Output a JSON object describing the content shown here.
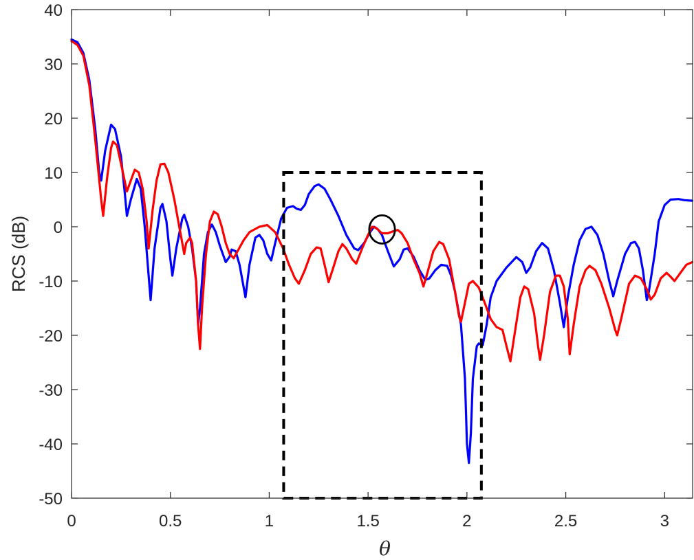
{
  "chart_data": {
    "type": "line",
    "title": "",
    "xlabel": "θ",
    "ylabel": "RCS (dB)",
    "xlim": [
      0,
      3.1416
    ],
    "ylim": [
      -50,
      40
    ],
    "xticks": [
      0,
      0.5,
      1,
      1.5,
      2,
      2.5,
      3
    ],
    "xtick_labels": [
      "0",
      "0.5",
      "1",
      "1.5",
      "2",
      "2.5",
      "3"
    ],
    "yticks": [
      -50,
      -40,
      -30,
      -20,
      -10,
      0,
      10,
      20,
      30,
      40
    ],
    "ytick_labels": [
      "-50",
      "-40",
      "-30",
      "-20",
      "-10",
      "0",
      "10",
      "20",
      "30",
      "40"
    ],
    "grid": false,
    "series": [
      {
        "color": "#0000ff",
        "points": [
          [
            0,
            34.5
          ],
          [
            0.03,
            34
          ],
          [
            0.06,
            32
          ],
          [
            0.09,
            27
          ],
          [
            0.12,
            18
          ],
          [
            0.14,
            10
          ],
          [
            0.15,
            8.5
          ],
          [
            0.17,
            14
          ],
          [
            0.2,
            18.8
          ],
          [
            0.22,
            18
          ],
          [
            0.25,
            13
          ],
          [
            0.27,
            6
          ],
          [
            0.28,
            2
          ],
          [
            0.3,
            5
          ],
          [
            0.33,
            8.8
          ],
          [
            0.35,
            7
          ],
          [
            0.37,
            0
          ],
          [
            0.39,
            -9
          ],
          [
            0.4,
            -13.5
          ],
          [
            0.42,
            -4
          ],
          [
            0.45,
            3.5
          ],
          [
            0.46,
            4.2
          ],
          [
            0.48,
            1
          ],
          [
            0.5,
            -6
          ],
          [
            0.51,
            -9
          ],
          [
            0.53,
            -4
          ],
          [
            0.56,
            1.5
          ],
          [
            0.57,
            2.2
          ],
          [
            0.59,
            0
          ],
          [
            0.61,
            -4
          ],
          [
            0.63,
            -10
          ],
          [
            0.64,
            -18
          ],
          [
            0.65,
            -15
          ],
          [
            0.67,
            -5
          ],
          [
            0.69,
            -1
          ],
          [
            0.71,
            0.4
          ],
          [
            0.73,
            -1
          ],
          [
            0.75,
            -3.5
          ],
          [
            0.78,
            -6.5
          ],
          [
            0.8,
            -5.5
          ],
          [
            0.81,
            -4.2
          ],
          [
            0.83,
            -4.5
          ],
          [
            0.85,
            -7
          ],
          [
            0.88,
            -13
          ],
          [
            0.9,
            -7
          ],
          [
            0.93,
            -2
          ],
          [
            0.95,
            -1.5
          ],
          [
            0.97,
            -2.5
          ],
          [
            0.99,
            -5
          ],
          [
            1.01,
            -6.2
          ],
          [
            1.03,
            -3
          ],
          [
            1.06,
            1.5
          ],
          [
            1.09,
            3.5
          ],
          [
            1.12,
            3.8
          ],
          [
            1.14,
            3.3
          ],
          [
            1.16,
            3.1
          ],
          [
            1.18,
            4
          ],
          [
            1.2,
            6
          ],
          [
            1.23,
            7.5
          ],
          [
            1.25,
            7.8
          ],
          [
            1.28,
            7
          ],
          [
            1.31,
            5
          ],
          [
            1.35,
            2
          ],
          [
            1.39,
            -1.5
          ],
          [
            1.43,
            -4
          ],
          [
            1.45,
            -4.3
          ],
          [
            1.48,
            -3
          ],
          [
            1.51,
            -1
          ],
          [
            1.53,
            0
          ],
          [
            1.55,
            -0.5
          ],
          [
            1.57,
            -1.5
          ],
          [
            1.6,
            -4.5
          ],
          [
            1.63,
            -7.3
          ],
          [
            1.66,
            -6
          ],
          [
            1.68,
            -4.2
          ],
          [
            1.7,
            -4
          ],
          [
            1.73,
            -5.5
          ],
          [
            1.76,
            -8
          ],
          [
            1.79,
            -9.8
          ],
          [
            1.81,
            -9.5
          ],
          [
            1.84,
            -8
          ],
          [
            1.87,
            -7
          ],
          [
            1.9,
            -7.2
          ],
          [
            1.92,
            -9
          ],
          [
            1.94,
            -12
          ],
          [
            1.97,
            -18
          ],
          [
            1.99,
            -28
          ],
          [
            2.0,
            -40
          ],
          [
            2.01,
            -43.5
          ],
          [
            2.02,
            -38
          ],
          [
            2.03,
            -28
          ],
          [
            2.05,
            -22
          ],
          [
            2.06,
            -21.5
          ],
          [
            2.08,
            -21.8
          ],
          [
            2.1,
            -18
          ],
          [
            2.12,
            -13
          ],
          [
            2.15,
            -10
          ],
          [
            2.2,
            -7.5
          ],
          [
            2.25,
            -5.6
          ],
          [
            2.28,
            -6.5
          ],
          [
            2.3,
            -8.5
          ],
          [
            2.32,
            -7.5
          ],
          [
            2.35,
            -4.5
          ],
          [
            2.38,
            -3
          ],
          [
            2.41,
            -4
          ],
          [
            2.44,
            -8
          ],
          [
            2.47,
            -14
          ],
          [
            2.49,
            -18.5
          ],
          [
            2.51,
            -13
          ],
          [
            2.54,
            -7
          ],
          [
            2.57,
            -2.5
          ],
          [
            2.6,
            -0.4
          ],
          [
            2.63,
            0
          ],
          [
            2.66,
            -1.5
          ],
          [
            2.69,
            -5
          ],
          [
            2.72,
            -10
          ],
          [
            2.74,
            -12.8
          ],
          [
            2.76,
            -10
          ],
          [
            2.8,
            -5
          ],
          [
            2.83,
            -3
          ],
          [
            2.85,
            -2.8
          ],
          [
            2.87,
            -4
          ],
          [
            2.89,
            -8
          ],
          [
            2.91,
            -13.5
          ],
          [
            2.92,
            -12
          ],
          [
            2.95,
            -5
          ],
          [
            2.97,
            1
          ],
          [
            3.0,
            4
          ],
          [
            3.03,
            5
          ],
          [
            3.07,
            5.1
          ],
          [
            3.1,
            4.9
          ],
          [
            3.14,
            4.8
          ]
        ]
      },
      {
        "color": "#ff0000",
        "points": [
          [
            0,
            34.2
          ],
          [
            0.03,
            33.5
          ],
          [
            0.06,
            31.5
          ],
          [
            0.09,
            26
          ],
          [
            0.12,
            16
          ],
          [
            0.15,
            5
          ],
          [
            0.16,
            2
          ],
          [
            0.18,
            9
          ],
          [
            0.2,
            14.5
          ],
          [
            0.21,
            15.7
          ],
          [
            0.23,
            15
          ],
          [
            0.26,
            10
          ],
          [
            0.28,
            6.5
          ],
          [
            0.3,
            8.5
          ],
          [
            0.32,
            10.5
          ],
          [
            0.34,
            10
          ],
          [
            0.36,
            7
          ],
          [
            0.38,
            1
          ],
          [
            0.39,
            -4
          ],
          [
            0.41,
            3
          ],
          [
            0.43,
            8.5
          ],
          [
            0.45,
            11.5
          ],
          [
            0.47,
            11.6
          ],
          [
            0.49,
            10
          ],
          [
            0.52,
            5
          ],
          [
            0.54,
            1
          ],
          [
            0.56,
            -3
          ],
          [
            0.57,
            -5
          ],
          [
            0.58,
            -3
          ],
          [
            0.6,
            -2
          ],
          [
            0.61,
            -3
          ],
          [
            0.63,
            -10
          ],
          [
            0.64,
            -18
          ],
          [
            0.65,
            -22.5
          ],
          [
            0.66,
            -15
          ],
          [
            0.68,
            -5
          ],
          [
            0.7,
            1
          ],
          [
            0.72,
            2.8
          ],
          [
            0.74,
            2.3
          ],
          [
            0.76,
            0
          ],
          [
            0.78,
            -3
          ],
          [
            0.8,
            -5
          ],
          [
            0.82,
            -5.8
          ],
          [
            0.84,
            -4.5
          ],
          [
            0.87,
            -2.5
          ],
          [
            0.9,
            -1
          ],
          [
            0.95,
            0
          ],
          [
            0.99,
            0.3
          ],
          [
            1.03,
            -1
          ],
          [
            1.07,
            -4
          ],
          [
            1.1,
            -7
          ],
          [
            1.13,
            -9.5
          ],
          [
            1.15,
            -10.5
          ],
          [
            1.18,
            -8
          ],
          [
            1.21,
            -5
          ],
          [
            1.24,
            -3.8
          ],
          [
            1.26,
            -4
          ],
          [
            1.28,
            -7
          ],
          [
            1.3,
            -10.2
          ],
          [
            1.32,
            -8
          ],
          [
            1.35,
            -4.5
          ],
          [
            1.37,
            -3.2
          ],
          [
            1.39,
            -4
          ],
          [
            1.42,
            -6
          ],
          [
            1.44,
            -6.8
          ],
          [
            1.47,
            -4
          ],
          [
            1.5,
            -1.5
          ],
          [
            1.52,
            0
          ],
          [
            1.54,
            -0.2
          ],
          [
            1.57,
            -1.2
          ],
          [
            1.6,
            -1.2
          ],
          [
            1.63,
            -0.8
          ],
          [
            1.65,
            -0.6
          ],
          [
            1.67,
            -1.2
          ],
          [
            1.7,
            -3
          ],
          [
            1.73,
            -6
          ],
          [
            1.76,
            -8.5
          ],
          [
            1.78,
            -11
          ],
          [
            1.8,
            -8.5
          ],
          [
            1.83,
            -4.5
          ],
          [
            1.86,
            -2.8
          ],
          [
            1.88,
            -3.2
          ],
          [
            1.91,
            -6
          ],
          [
            1.94,
            -12
          ],
          [
            1.96,
            -16.5
          ],
          [
            1.97,
            -17.5
          ],
          [
            1.99,
            -14
          ],
          [
            2.01,
            -10.5
          ],
          [
            2.03,
            -10
          ],
          [
            2.06,
            -11.2
          ],
          [
            2.09,
            -14
          ],
          [
            2.12,
            -17
          ],
          [
            2.15,
            -18.5
          ],
          [
            2.18,
            -19
          ],
          [
            2.2,
            -22
          ],
          [
            2.22,
            -24.8
          ],
          [
            2.24,
            -20
          ],
          [
            2.27,
            -13
          ],
          [
            2.29,
            -11
          ],
          [
            2.31,
            -11.5
          ],
          [
            2.34,
            -16
          ],
          [
            2.36,
            -22
          ],
          [
            2.37,
            -24.5
          ],
          [
            2.39,
            -20
          ],
          [
            2.42,
            -12
          ],
          [
            2.45,
            -9
          ],
          [
            2.47,
            -9
          ],
          [
            2.49,
            -11
          ],
          [
            2.51,
            -17
          ],
          [
            2.52,
            -23.5
          ],
          [
            2.54,
            -18
          ],
          [
            2.57,
            -11
          ],
          [
            2.6,
            -8
          ],
          [
            2.62,
            -7.2
          ],
          [
            2.65,
            -8
          ],
          [
            2.68,
            -10.5
          ],
          [
            2.72,
            -15
          ],
          [
            2.75,
            -19
          ],
          [
            2.76,
            -20
          ],
          [
            2.78,
            -17
          ],
          [
            2.82,
            -10.5
          ],
          [
            2.85,
            -9
          ],
          [
            2.88,
            -9.5
          ],
          [
            2.91,
            -11.5
          ],
          [
            2.93,
            -13.4
          ],
          [
            2.95,
            -12.5
          ],
          [
            2.98,
            -9.5
          ],
          [
            3.01,
            -8.5
          ],
          [
            3.03,
            -9.2
          ],
          [
            3.05,
            -10
          ],
          [
            3.08,
            -8.5
          ],
          [
            3.11,
            -7
          ],
          [
            3.14,
            -6.5
          ]
        ]
      }
    ],
    "annotations": {
      "dashed_box": {
        "x": [
          1.073,
          2.073
        ],
        "y": [
          -50,
          10
        ]
      },
      "circle": {
        "x": 1.5708,
        "y": -0.5,
        "radius_x": 0.065,
        "radius_y": 2.6
      }
    }
  }
}
